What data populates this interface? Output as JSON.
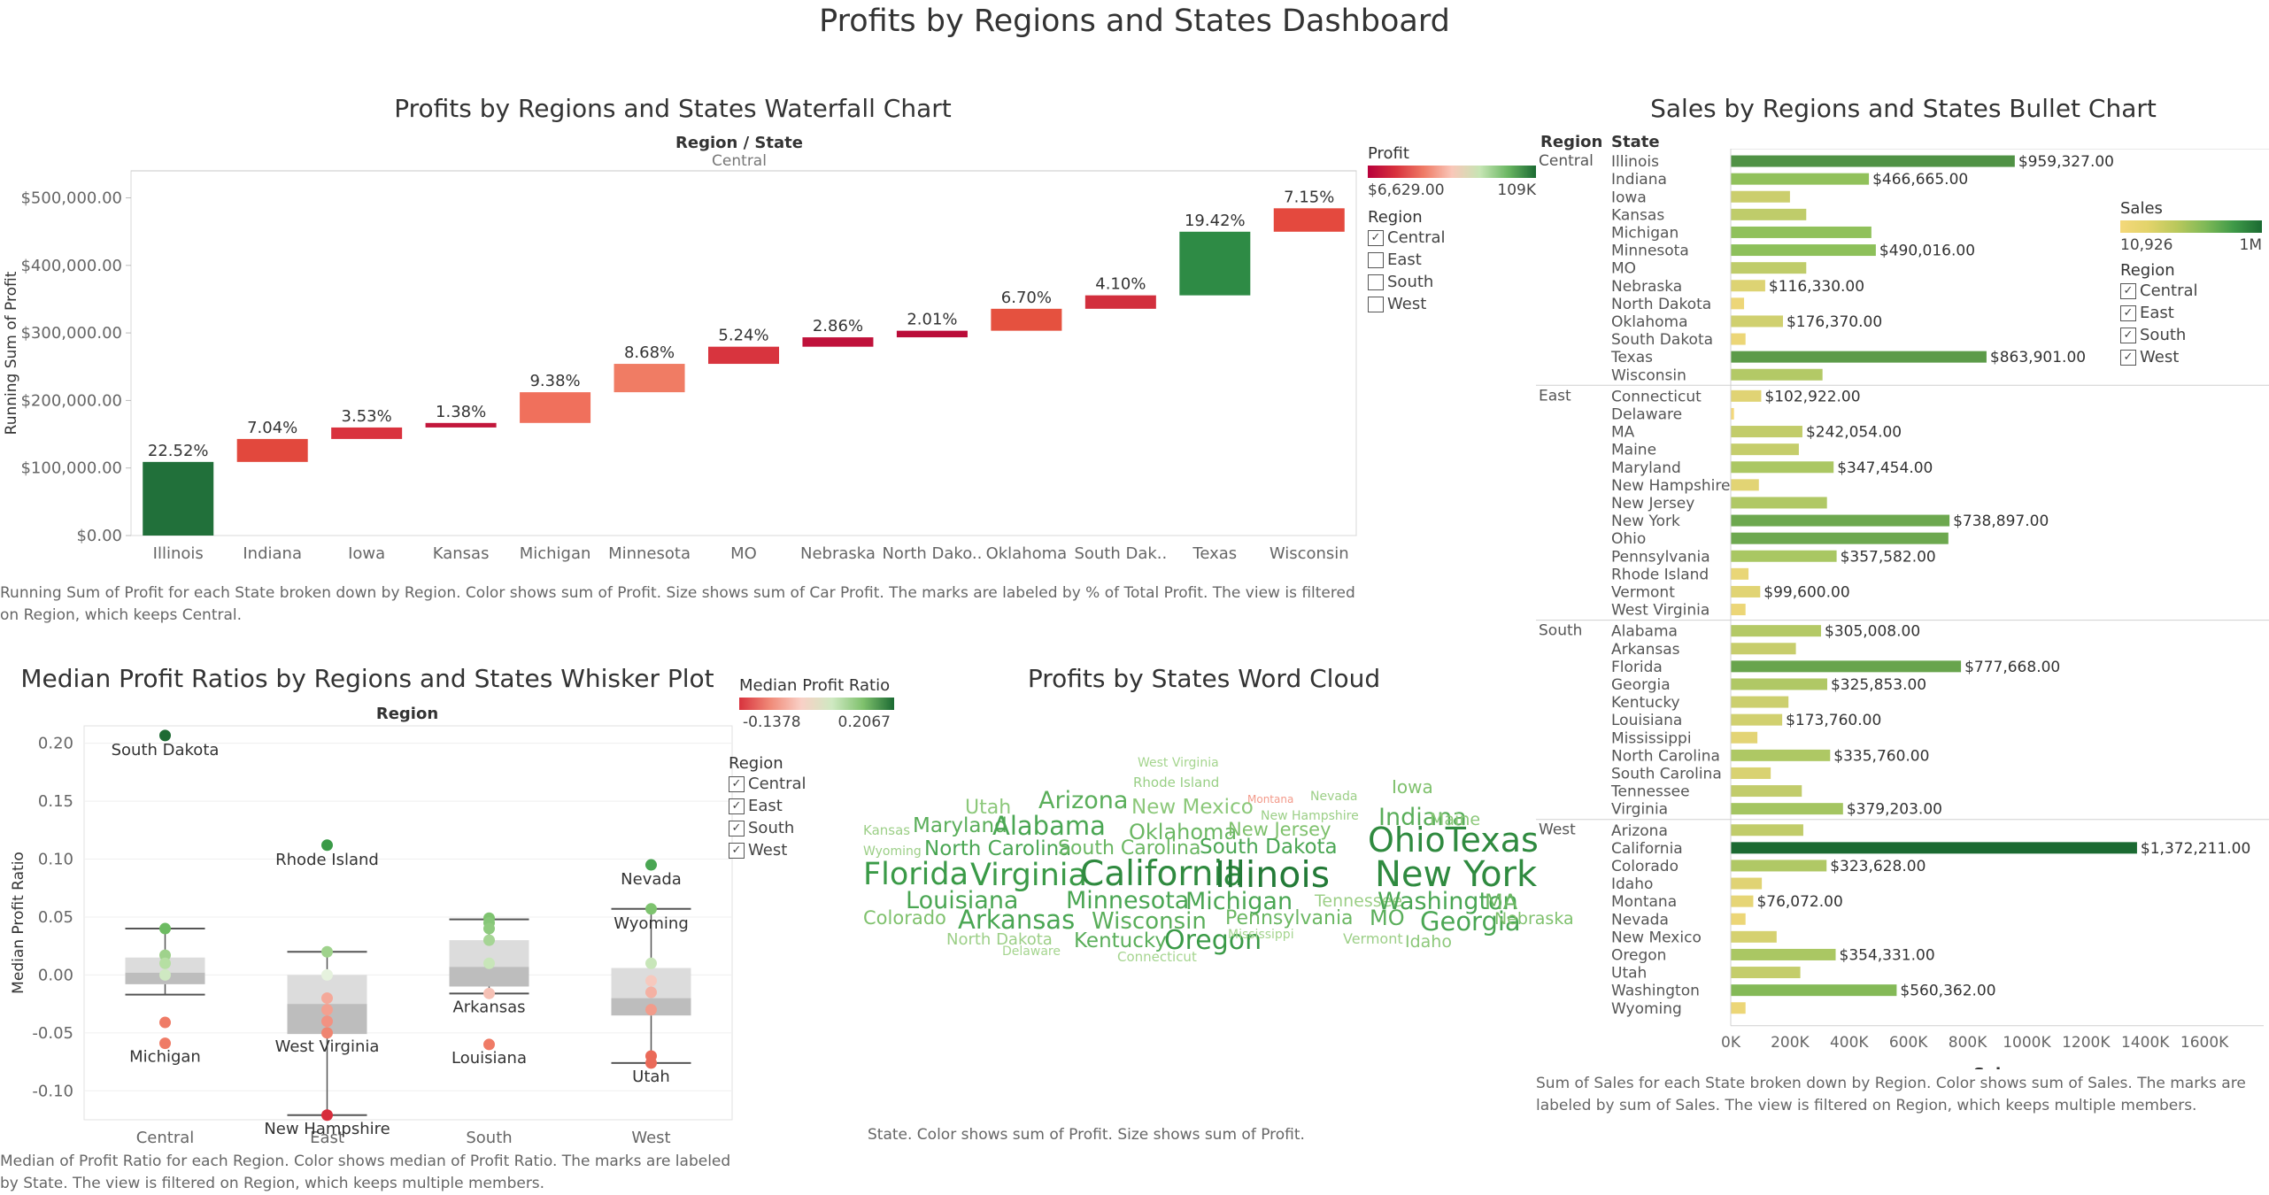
{
  "dashboard": {
    "title": "Profits by Regions and States Dashboard"
  },
  "waterfall": {
    "title": "Profits by Regions and States Waterfall Chart",
    "header": "Region / State",
    "region": "Central",
    "ylabel": "Running Sum of Profit",
    "yticks": [
      "$500,000.00",
      "$400,000.00",
      "$300,000.00",
      "$200,000.00",
      "$100,000.00",
      "$0.00"
    ],
    "caption": "Running Sum of Profit for each State broken down by Region.  Color shows sum of Profit.  Size shows sum of Car Profit.  The marks are labeled by % of Total Profit. The view is filtered on Region, which keeps Central.",
    "legend": {
      "profit_title": "Profit",
      "profit_min": "$6,629.00",
      "profit_max": "109K",
      "region_title": "Region",
      "regions": [
        {
          "name": "Central",
          "checked": "✓"
        },
        {
          "name": "East",
          "checked": ""
        },
        {
          "name": "South",
          "checked": ""
        },
        {
          "name": "West",
          "checked": ""
        }
      ]
    }
  },
  "chart_data": [
    {
      "type": "bar",
      "subtype": "waterfall",
      "title": "Profits by Regions and States Waterfall Chart",
      "ylabel": "Running Sum of Profit",
      "ylim": [
        0,
        540000
      ],
      "categories": [
        "Illinois",
        "Indiana",
        "Iowa",
        "Kansas",
        "Michigan",
        "Minnesota",
        "MO",
        "Nebraska",
        "North Dako..",
        "Oklahoma",
        "South Dak..",
        "Texas",
        "Wisconsin"
      ],
      "values": [
        109000,
        34000,
        17000,
        6700,
        45500,
        42000,
        25400,
        13900,
        9750,
        32500,
        19900,
        94200,
        34700
      ],
      "labels": [
        "22.52%",
        "7.04%",
        "3.53%",
        "1.38%",
        "9.38%",
        "8.68%",
        "5.24%",
        "2.86%",
        "2.01%",
        "6.70%",
        "4.10%",
        "19.42%",
        "7.15%"
      ],
      "colors": [
        "#21703a",
        "#e2483d",
        "#d9323e",
        "#c2173b",
        "#f0705c",
        "#f07c64",
        "#d8343e",
        "#c0123b",
        "#ba0c39",
        "#e5513f",
        "#d22f3d",
        "#2e8b45",
        "#e4493e"
      ]
    },
    {
      "type": "scatter",
      "subtype": "box-whisker",
      "title": "Median Profit Ratios by Regions and States Whisker Plot",
      "xlabel": "Region",
      "ylabel": "Median Profit Ratio",
      "ylim": [
        -0.125,
        0.215
      ],
      "categories": [
        "Central",
        "East",
        "South",
        "West"
      ],
      "boxes": [
        {
          "whisker_low": -0.017,
          "q1": -0.008,
          "median": 0.002,
          "q3": 0.015,
          "whisker_high": 0.04
        },
        {
          "whisker_low": -0.121,
          "q1": -0.051,
          "median": -0.025,
          "q3": 0.0,
          "whisker_high": 0.02
        },
        {
          "whisker_low": -0.016,
          "q1": -0.01,
          "median": 0.007,
          "q3": 0.03,
          "whisker_high": 0.048
        },
        {
          "whisker_low": -0.076,
          "q1": -0.035,
          "median": -0.02,
          "q3": 0.006,
          "whisker_high": 0.057
        }
      ],
      "points": [
        {
          "region": "Central",
          "y": 0.2067,
          "label": "South Dakota",
          "color": "#1e6b34"
        },
        {
          "region": "Central",
          "y": 0.04,
          "label": "",
          "color": "#6dbb62"
        },
        {
          "region": "Central",
          "y": 0.017,
          "label": "",
          "color": "#9fd28c"
        },
        {
          "region": "Central",
          "y": 0.01,
          "label": "",
          "color": "#b6dfa3"
        },
        {
          "region": "Central",
          "y": 0.0,
          "label": "",
          "color": "#cfe9c2"
        },
        {
          "region": "Central",
          "y": -0.041,
          "label": "",
          "color": "#ef7b66"
        },
        {
          "region": "Central",
          "y": -0.059,
          "label": "Michigan",
          "color": "#ef7b66"
        },
        {
          "region": "East",
          "y": 0.112,
          "label": "Rhode Island",
          "color": "#3a9a47"
        },
        {
          "region": "East",
          "y": 0.02,
          "label": "",
          "color": "#9fd28c"
        },
        {
          "region": "East",
          "y": 0.0,
          "label": "",
          "color": "#e6f2de"
        },
        {
          "region": "East",
          "y": -0.02,
          "label": "",
          "color": "#f4a99a"
        },
        {
          "region": "East",
          "y": -0.03,
          "label": "",
          "color": "#f3a090"
        },
        {
          "region": "East",
          "y": -0.04,
          "label": "",
          "color": "#f29282"
        },
        {
          "region": "East",
          "y": -0.05,
          "label": "West Virginia",
          "color": "#ef8571"
        },
        {
          "region": "East",
          "y": -0.121,
          "label": "New Hampshire",
          "color": "#d72d3c"
        },
        {
          "region": "South",
          "y": 0.049,
          "label": "",
          "color": "#7ec36f"
        },
        {
          "region": "South",
          "y": 0.045,
          "label": "",
          "color": "#86c778"
        },
        {
          "region": "South",
          "y": 0.04,
          "label": "",
          "color": "#8fcb7f"
        },
        {
          "region": "South",
          "y": 0.03,
          "label": "",
          "color": "#a6d595"
        },
        {
          "region": "South",
          "y": 0.01,
          "label": "",
          "color": "#c8e6b9"
        },
        {
          "region": "South",
          "y": -0.016,
          "label": "Arkansas",
          "color": "#f6c1b5"
        },
        {
          "region": "South",
          "y": -0.06,
          "label": "Louisiana",
          "color": "#ef7b66"
        },
        {
          "region": "West",
          "y": 0.095,
          "label": "Nevada",
          "color": "#4aa653"
        },
        {
          "region": "West",
          "y": 0.057,
          "label": "Wyoming",
          "color": "#7ec36f"
        },
        {
          "region": "West",
          "y": 0.01,
          "label": "",
          "color": "#c8e6b9"
        },
        {
          "region": "West",
          "y": -0.005,
          "label": "",
          "color": "#f6c9be"
        },
        {
          "region": "West",
          "y": -0.015,
          "label": "",
          "color": "#f4b1a3"
        },
        {
          "region": "West",
          "y": -0.03,
          "label": "",
          "color": "#f29c8b"
        },
        {
          "region": "West",
          "y": -0.07,
          "label": "",
          "color": "#ea6a59"
        },
        {
          "region": "West",
          "y": -0.076,
          "label": "Utah",
          "color": "#ea6a59"
        }
      ]
    },
    {
      "type": "bar",
      "subtype": "bullet",
      "title": "Sales by Regions and States Bullet Chart",
      "xlabel": "Sales",
      "xlim": [
        0,
        1800000
      ],
      "xticks": [
        "0K",
        "200K",
        "400K",
        "600K",
        "800K",
        "1000K",
        "1200K",
        "1400K",
        "1600K"
      ],
      "groups": [
        {
          "region": "Central",
          "states": [
            {
              "name": "Illinois",
              "value": 959327,
              "label": "$959,327.00"
            },
            {
              "name": "Indiana",
              "value": 466665,
              "label": "$466,665.00"
            },
            {
              "name": "Iowa",
              "value": 200000,
              "label": ""
            },
            {
              "name": "Kansas",
              "value": 255000,
              "label": ""
            },
            {
              "name": "Michigan",
              "value": 475000,
              "label": ""
            },
            {
              "name": "Minnesota",
              "value": 490016,
              "label": "$490,016.00"
            },
            {
              "name": "MO",
              "value": 255000,
              "label": ""
            },
            {
              "name": "Nebraska",
              "value": 116330,
              "label": "$116,330.00"
            },
            {
              "name": "North Dakota",
              "value": 45000,
              "label": ""
            },
            {
              "name": "Oklahoma",
              "value": 176370,
              "label": "$176,370.00"
            },
            {
              "name": "South Dakota",
              "value": 50000,
              "label": ""
            },
            {
              "name": "Texas",
              "value": 863901,
              "label": "$863,901.00"
            },
            {
              "name": "Wisconsin",
              "value": 310000,
              "label": ""
            }
          ]
        },
        {
          "region": "East",
          "states": [
            {
              "name": "Connecticut",
              "value": 102922,
              "label": "$102,922.00"
            },
            {
              "name": "Delaware",
              "value": 10926,
              "label": ""
            },
            {
              "name": "MA",
              "value": 242054,
              "label": "$242,054.00"
            },
            {
              "name": "Maine",
              "value": 230000,
              "label": ""
            },
            {
              "name": "Maryland",
              "value": 347454,
              "label": "$347,454.00"
            },
            {
              "name": "New Hampshire",
              "value": 95000,
              "label": ""
            },
            {
              "name": "New Jersey",
              "value": 325000,
              "label": ""
            },
            {
              "name": "New York",
              "value": 738897,
              "label": "$738,897.00"
            },
            {
              "name": "Ohio",
              "value": 735000,
              "label": ""
            },
            {
              "name": "Pennsylvania",
              "value": 357582,
              "label": "$357,582.00"
            },
            {
              "name": "Rhode Island",
              "value": 60000,
              "label": ""
            },
            {
              "name": "Vermont",
              "value": 99600,
              "label": "$99,600.00"
            },
            {
              "name": "West Virginia",
              "value": 50000,
              "label": ""
            }
          ]
        },
        {
          "region": "South",
          "states": [
            {
              "name": "Alabama",
              "value": 305008,
              "label": "$305,008.00"
            },
            {
              "name": "Arkansas",
              "value": 220000,
              "label": ""
            },
            {
              "name": "Florida",
              "value": 777668,
              "label": "$777,668.00"
            },
            {
              "name": "Georgia",
              "value": 325853,
              "label": "$325,853.00"
            },
            {
              "name": "Kentucky",
              "value": 195000,
              "label": ""
            },
            {
              "name": "Louisiana",
              "value": 173760,
              "label": "$173,760.00"
            },
            {
              "name": "Mississippi",
              "value": 90000,
              "label": ""
            },
            {
              "name": "North Carolina",
              "value": 335760,
              "label": "$335,760.00"
            },
            {
              "name": "South Carolina",
              "value": 135000,
              "label": ""
            },
            {
              "name": "Tennessee",
              "value": 240000,
              "label": ""
            },
            {
              "name": "Virginia",
              "value": 379203,
              "label": "$379,203.00"
            }
          ]
        },
        {
          "region": "West",
          "states": [
            {
              "name": "Arizona",
              "value": 245000,
              "label": ""
            },
            {
              "name": "California",
              "value": 1372211,
              "label": "$1,372,211.00"
            },
            {
              "name": "Colorado",
              "value": 323628,
              "label": "$323,628.00"
            },
            {
              "name": "Idaho",
              "value": 105000,
              "label": ""
            },
            {
              "name": "Montana",
              "value": 76072,
              "label": "$76,072.00"
            },
            {
              "name": "Nevada",
              "value": 50000,
              "label": ""
            },
            {
              "name": "New Mexico",
              "value": 155000,
              "label": ""
            },
            {
              "name": "Oregon",
              "value": 354331,
              "label": "$354,331.00"
            },
            {
              "name": "Utah",
              "value": 235000,
              "label": ""
            },
            {
              "name": "Washington",
              "value": 560362,
              "label": "$560,362.00"
            },
            {
              "name": "Wyoming",
              "value": 50000,
              "label": ""
            }
          ]
        }
      ]
    }
  ],
  "whisker": {
    "title": "Median Profit Ratios by Regions and States Whisker Plot",
    "header": "Region",
    "ylabel": "Median Profit Ratio",
    "yticks": [
      "0.20",
      "0.15",
      "0.10",
      "0.05",
      "0.00",
      "-0.05",
      "-0.10"
    ],
    "caption": "Median of Profit Ratio for each Region.  Color shows median of Profit Ratio.  The marks are labeled by State. The view is filtered on Region, which keeps multiple members.",
    "legend": {
      "title": "Median Profit Ratio",
      "min": "-0.1378",
      "max": "0.2067",
      "region_title": "Region",
      "regions": [
        {
          "name": "Central",
          "checked": "✓"
        },
        {
          "name": "East",
          "checked": "✓"
        },
        {
          "name": "South",
          "checked": "✓"
        },
        {
          "name": "West",
          "checked": "✓"
        }
      ]
    }
  },
  "wordcloud": {
    "title": "Profits by States Word Cloud",
    "caption": "State. Color shows sum of Profit. Size shows sum of Profit.",
    "words": [
      {
        "text": "West Virginia",
        "color": "#a5d58f"
      },
      {
        "text": "Rhode Island",
        "color": "#98cf85"
      },
      {
        "text": "Montana",
        "color": "#f39a8a"
      },
      {
        "text": "Nevada",
        "color": "#9ccf87"
      },
      {
        "text": "Iowa",
        "color": "#7fc16d"
      },
      {
        "text": "Utah",
        "color": "#8cc87a"
      },
      {
        "text": "Arizona",
        "color": "#5aae5a"
      },
      {
        "text": "New Mexico",
        "color": "#8cc87a"
      },
      {
        "text": "New Hampshire",
        "color": "#9ccf87"
      },
      {
        "text": "Indiana",
        "color": "#5aae5a"
      },
      {
        "text": "Maine",
        "color": "#8cc87a"
      },
      {
        "text": "Kansas",
        "color": "#9ccf87"
      },
      {
        "text": "Maryland",
        "color": "#5aae5a"
      },
      {
        "text": "Alabama",
        "color": "#4aa653"
      },
      {
        "text": "Oklahoma",
        "color": "#6bb763"
      },
      {
        "text": "New Jersey",
        "color": "#7fc16d"
      },
      {
        "text": "Wyoming",
        "color": "#9ccf87"
      },
      {
        "text": "North Carolina",
        "color": "#4aa653"
      },
      {
        "text": "South Carolina",
        "color": "#6bb763"
      },
      {
        "text": "South Dakota",
        "color": "#4aa653"
      },
      {
        "text": "OhioTexas",
        "color": "#2f8a3f"
      },
      {
        "text": "Florida",
        "color": "#3a9a47"
      },
      {
        "text": "Virginia",
        "color": "#3a9a47"
      },
      {
        "text": "California",
        "color": "#2f8a3f"
      },
      {
        "text": "Illinois",
        "color": "#237a37"
      },
      {
        "text": "New York",
        "color": "#2f8a3f"
      },
      {
        "text": "Louisiana",
        "color": "#4aa653"
      },
      {
        "text": "Minnesota",
        "color": "#4aa653"
      },
      {
        "text": "Michigan",
        "color": "#4aa653"
      },
      {
        "text": "Tennessee",
        "color": "#9ccf87"
      },
      {
        "text": "Washington",
        "color": "#4aa653"
      },
      {
        "text": "MA",
        "color": "#6bb763"
      },
      {
        "text": "Colorado",
        "color": "#7fc16d"
      },
      {
        "text": "Arkansas",
        "color": "#4aa653"
      },
      {
        "text": "Wisconsin",
        "color": "#5aae5a"
      },
      {
        "text": "Pennsylvania",
        "color": "#6bb763"
      },
      {
        "text": "MO",
        "color": "#5aae5a"
      },
      {
        "text": "Georgia",
        "color": "#4aa653"
      },
      {
        "text": "Nebraska",
        "color": "#7fc16d"
      },
      {
        "text": "North Dakota",
        "color": "#9ccf87"
      },
      {
        "text": "Kentucky",
        "color": "#5aae5a"
      },
      {
        "text": "Oregon",
        "color": "#3a9a47"
      },
      {
        "text": "Mississippi",
        "color": "#a5d58f"
      },
      {
        "text": "Vermont",
        "color": "#9ccf87"
      },
      {
        "text": "Idaho",
        "color": "#8cc87a"
      },
      {
        "text": "Delaware",
        "color": "#a5d58f"
      },
      {
        "text": "Connecticut",
        "color": "#a5d58f"
      }
    ]
  },
  "bullet": {
    "title": "Sales by Regions and States Bullet Chart",
    "col_region": "Region",
    "col_state": "State",
    "xlabel": "Sales",
    "caption": "Sum of Sales for each State broken down by Region.  Color shows sum of Sales.  The marks are labeled by sum of Sales. The view is filtered on Region, which keeps multiple members.",
    "legend": {
      "title": "Sales",
      "min": "10,926",
      "max": "1M",
      "region_title": "Region",
      "regions": [
        {
          "name": "Central",
          "checked": "✓"
        },
        {
          "name": "East",
          "checked": "✓"
        },
        {
          "name": "South",
          "checked": "✓"
        },
        {
          "name": "West",
          "checked": "✓"
        }
      ]
    }
  }
}
